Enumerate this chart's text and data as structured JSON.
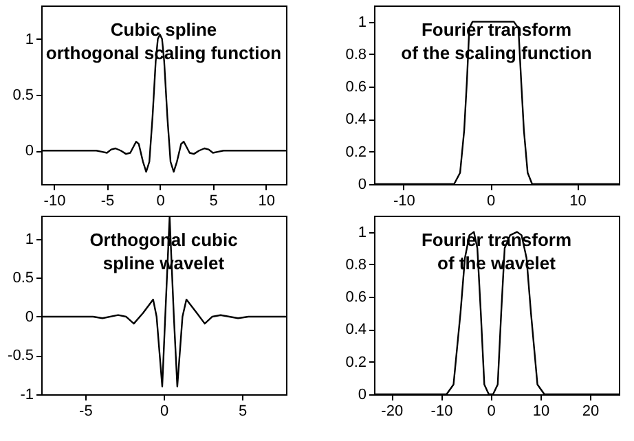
{
  "chart_data": [
    {
      "type": "line",
      "title": "Cubic spline\northogonal scaling function",
      "xlim": [
        -11.2,
        11.9
      ],
      "ylim": [
        -0.3,
        1.3
      ],
      "xticks": [
        -10,
        -5,
        0,
        5,
        10
      ],
      "yticks": [
        0,
        0.5,
        1
      ],
      "grid": false,
      "series": [
        {
          "color": "#000000",
          "x": [
            -11.2,
            -6,
            -5.5,
            -5,
            -4.6,
            -4.2,
            -3.7,
            -3.2,
            -2.8,
            -2.25,
            -2.0,
            -1.6,
            -1.3,
            -1.0,
            -0.7,
            -0.4,
            -0.2,
            0,
            0.2,
            0.4,
            0.7,
            1.0,
            1.3,
            1.6,
            2.0,
            2.25,
            2.8,
            3.2,
            3.7,
            4.2,
            4.6,
            5,
            5.5,
            6,
            11.9
          ],
          "values": [
            0,
            0,
            -0.01,
            -0.02,
            0.01,
            0.02,
            0,
            -0.03,
            -0.02,
            0.08,
            0.06,
            -0.1,
            -0.19,
            -0.1,
            0.3,
            0.8,
            1.0,
            1.04,
            1.0,
            0.8,
            0.3,
            -0.1,
            -0.19,
            -0.1,
            0.06,
            0.08,
            -0.02,
            -0.03,
            0,
            0.02,
            0.01,
            -0.02,
            -0.01,
            0,
            0
          ]
        }
      ]
    },
    {
      "type": "line",
      "title": "Fourier transform\nof the scaling function",
      "xlim": [
        -13.4,
        14.8
      ],
      "ylim": [
        0,
        1.1
      ],
      "xticks": [
        -10,
        0,
        10
      ],
      "yticks": [
        0,
        0.2,
        0.4,
        0.6,
        0.8,
        1
      ],
      "grid": false,
      "series": [
        {
          "color": "#000000",
          "x": [
            -13.4,
            -4.18,
            -3.49,
            -3.02,
            -2.7,
            -2.43,
            -2.06,
            2.7,
            3.23,
            3.54,
            3.86,
            4.29,
            4.81,
            14.8
          ],
          "values": [
            0,
            0,
            0.07,
            0.33,
            0.64,
            0.96,
            1.0,
            1.0,
            0.96,
            0.64,
            0.33,
            0.07,
            0,
            0
          ]
        }
      ]
    },
    {
      "type": "line",
      "title": "Orthogonal cubic\nspline wavelet",
      "xlim": [
        -7.8,
        7.8
      ],
      "ylim": [
        -1,
        1.3
      ],
      "xticks": [
        -5,
        0,
        5
      ],
      "yticks": [
        -1,
        -0.5,
        0,
        0.5,
        1
      ],
      "grid": false,
      "series": [
        {
          "color": "#000000",
          "x": [
            -7.8,
            -4.5,
            -3.9,
            -2.9,
            -2.4,
            -1.9,
            -1.3,
            -0.67,
            -0.45,
            -0.09,
            0.1,
            0.38,
            0.65,
            0.87,
            1.2,
            1.45,
            2.1,
            2.62,
            3.1,
            3.63,
            4.74,
            5.4,
            7.8
          ],
          "values": [
            0,
            0,
            -0.02,
            0.02,
            0,
            -0.09,
            0.05,
            0.22,
            0,
            -0.9,
            0,
            1.29,
            0,
            -0.9,
            0,
            0.22,
            0.05,
            -0.09,
            0,
            0.02,
            -0.02,
            0,
            0
          ]
        }
      ]
    },
    {
      "type": "line",
      "title": "Fourier transform\nof the wavelet",
      "xlim": [
        -23.5,
        25.8
      ],
      "ylim": [
        0,
        1.1
      ],
      "xticks": [
        -20,
        -10,
        0,
        10,
        20
      ],
      "yticks": [
        0,
        0.2,
        0.4,
        0.6,
        0.8,
        1
      ],
      "grid": false,
      "series": [
        {
          "color": "#000000",
          "x": [
            -23.5,
            -8.9,
            -7.5,
            -6.1,
            -5.2,
            -4.3,
            -3.4,
            -2.7,
            -2.0,
            -1.3,
            -0.4,
            0.46,
            1.4,
            2.1,
            2.8,
            3.9,
            5.3,
            6.2,
            7.2,
            8.1,
            9.4,
            10.8,
            25.8
          ],
          "values": [
            0,
            0,
            0.06,
            0.5,
            0.84,
            0.98,
            1.0,
            0.9,
            0.5,
            0.06,
            0,
            0,
            0.06,
            0.5,
            0.9,
            0.98,
            1.0,
            0.98,
            0.84,
            0.5,
            0.06,
            0,
            0
          ]
        }
      ]
    }
  ]
}
